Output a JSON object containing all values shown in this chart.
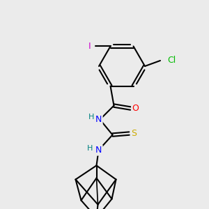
{
  "background_color": "#ebebeb",
  "bond_color": "#000000",
  "atom_colors": {
    "I": "#cc00cc",
    "Cl": "#00bb00",
    "O": "#ff0000",
    "N": "#0000ff",
    "S": "#ccaa00",
    "H": "#008080",
    "C": "#000000"
  },
  "figsize": [
    3.0,
    3.0
  ],
  "dpi": 100
}
